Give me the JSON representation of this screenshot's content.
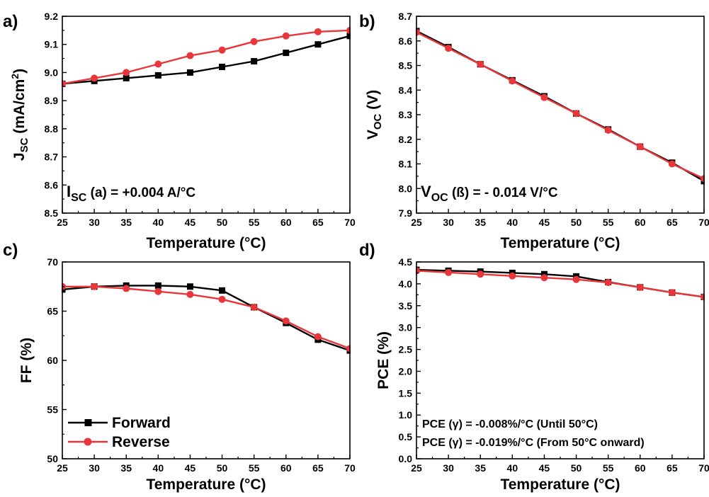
{
  "chart_data": [
    {
      "panel": "a)",
      "type": "line",
      "xlabel": "Temperature (°C)",
      "ylabel": {
        "main": "J",
        "sub": "SC",
        "rest": " (mA/cm",
        "sup": "2",
        "end": ")"
      },
      "xlim": [
        25,
        70
      ],
      "ylim": [
        8.5,
        9.2
      ],
      "xticks": [
        "25",
        "30",
        "35",
        "40",
        "45",
        "50",
        "55",
        "60",
        "65",
        "70"
      ],
      "yticks": [
        "8.5",
        "8.6",
        "8.7",
        "8.8",
        "8.9",
        "9.0",
        "9.1",
        "9.2"
      ],
      "annotation": {
        "main": "I",
        "sub": "SC",
        "rest": " (a) = +0.004 A/°C"
      },
      "grid": false,
      "x": [
        25,
        30,
        35,
        40,
        45,
        50,
        55,
        60,
        65,
        70
      ],
      "series": [
        {
          "name": "Forward",
          "color": "#000000",
          "marker": "square",
          "values": [
            8.96,
            8.97,
            8.98,
            8.99,
            9.0,
            9.02,
            9.04,
            9.07,
            9.1,
            9.13
          ]
        },
        {
          "name": "Reverse",
          "color": "#e8363a",
          "marker": "circle",
          "values": [
            8.96,
            8.98,
            9.0,
            9.03,
            9.06,
            9.08,
            9.11,
            9.13,
            9.145,
            9.15
          ]
        }
      ]
    },
    {
      "panel": "b)",
      "type": "line",
      "xlabel": "Temperature (°C)",
      "ylabel": {
        "main": "V",
        "sub": "OC",
        "rest": " (V)"
      },
      "xlim": [
        25,
        70
      ],
      "ylim": [
        7.9,
        8.7
      ],
      "xticks": [
        "25",
        "30",
        "35",
        "40",
        "45",
        "50",
        "55",
        "60",
        "65",
        "70"
      ],
      "yticks": [
        "7.9",
        "8.0",
        "8.1",
        "8.2",
        "8.3",
        "8.4",
        "8.5",
        "8.6",
        "8.7"
      ],
      "annotation": {
        "main": "V",
        "sub": "OC",
        "rest": " (ß) = - 0.014 V/°C"
      },
      "grid": false,
      "x": [
        25,
        30,
        35,
        40,
        45,
        50,
        55,
        60,
        65,
        70
      ],
      "series": [
        {
          "name": "Forward",
          "color": "#000000",
          "marker": "square",
          "values": [
            8.64,
            8.575,
            8.505,
            8.44,
            8.375,
            8.305,
            8.24,
            8.17,
            8.105,
            8.03
          ]
        },
        {
          "name": "Reverse",
          "color": "#e8363a",
          "marker": "circle",
          "values": [
            8.635,
            8.57,
            8.505,
            8.437,
            8.37,
            8.305,
            8.237,
            8.17,
            8.1,
            8.04
          ]
        }
      ]
    },
    {
      "panel": "c)",
      "type": "line",
      "xlabel": "Temperature (°C)",
      "ylabel": {
        "main": "FF (%)"
      },
      "xlim": [
        25,
        70
      ],
      "ylim": [
        50,
        70
      ],
      "xticks": [
        "25",
        "30",
        "35",
        "40",
        "45",
        "50",
        "55",
        "60",
        "65",
        "70"
      ],
      "yticks": [
        "50",
        "55",
        "60",
        "65",
        "70"
      ],
      "legend": {
        "position": "bottom-left",
        "entries": [
          "Forward",
          "Reverse"
        ]
      },
      "grid": false,
      "x": [
        25,
        30,
        35,
        40,
        45,
        50,
        55,
        60,
        65,
        70
      ],
      "series": [
        {
          "name": "Forward",
          "color": "#000000",
          "marker": "square",
          "values": [
            67.2,
            67.5,
            67.6,
            67.6,
            67.5,
            67.1,
            65.4,
            63.8,
            62.1,
            61.0
          ]
        },
        {
          "name": "Reverse",
          "color": "#e8363a",
          "marker": "circle",
          "values": [
            67.5,
            67.5,
            67.3,
            67.0,
            66.7,
            66.2,
            65.4,
            64.0,
            62.4,
            61.2
          ]
        }
      ]
    },
    {
      "panel": "d)",
      "type": "line",
      "xlabel": "Temperature (°C)",
      "ylabel": {
        "main": "PCE (%)"
      },
      "xlim": [
        25,
        70
      ],
      "ylim": [
        0.0,
        4.5
      ],
      "xticks": [
        "25",
        "30",
        "35",
        "40",
        "45",
        "50",
        "55",
        "60",
        "65",
        "70"
      ],
      "yticks": [
        "0.0",
        "0.5",
        "1.0",
        "1.5",
        "2.0",
        "2.5",
        "3.0",
        "3.5",
        "4.0",
        "4.5"
      ],
      "annotation_lines": [
        "PCE (γ) = -0.008%/°C (Until 50°C)",
        "PCE (γ) = -0.019%/°C (From 50°C onward)"
      ],
      "grid": false,
      "x": [
        25,
        30,
        35,
        40,
        45,
        50,
        55,
        60,
        65,
        70
      ],
      "series": [
        {
          "name": "Forward",
          "color": "#000000",
          "marker": "square",
          "values": [
            4.32,
            4.3,
            4.28,
            4.25,
            4.22,
            4.17,
            4.04,
            3.92,
            3.8,
            3.7
          ]
        },
        {
          "name": "Reverse",
          "color": "#e8363a",
          "marker": "circle",
          "values": [
            4.3,
            4.26,
            4.22,
            4.18,
            4.14,
            4.1,
            4.03,
            3.92,
            3.8,
            3.7
          ]
        }
      ]
    }
  ]
}
